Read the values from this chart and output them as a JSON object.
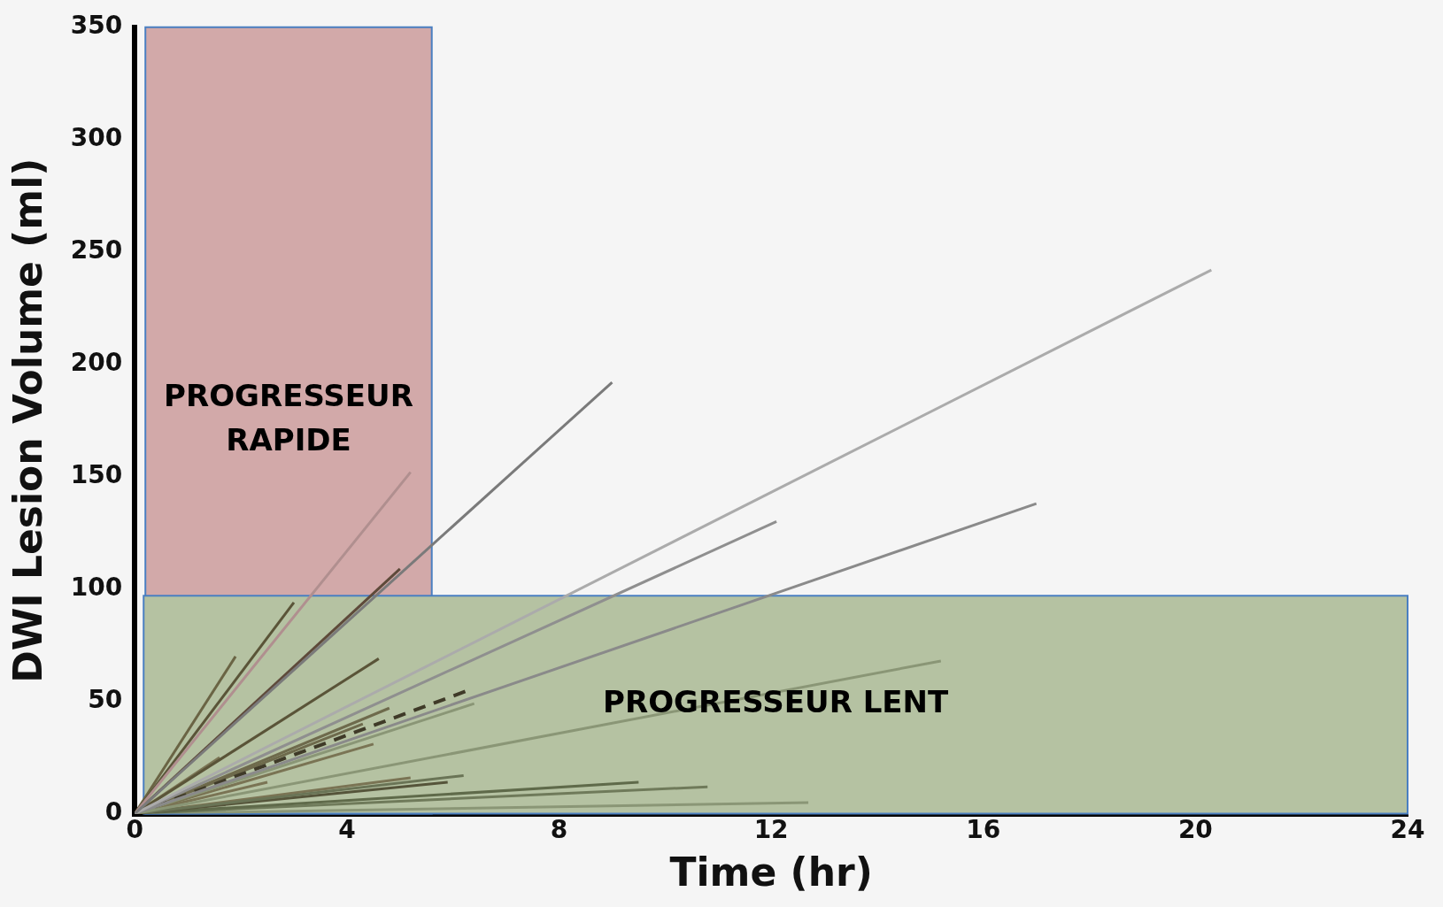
{
  "chart_data": {
    "type": "line",
    "xlabel": "Time (hr)",
    "ylabel": "DWI Lesion Volume (ml)",
    "xlim": [
      0,
      24
    ],
    "xticks": [
      0,
      4,
      8,
      12,
      16,
      20,
      24
    ],
    "ylim": [
      0,
      350
    ],
    "yticks": [
      0,
      50,
      100,
      150,
      200,
      250,
      300,
      350
    ],
    "grid": false,
    "legend": false,
    "marker": "none",
    "line_style": "solid",
    "bands": [
      {
        "axis": "x",
        "from": 0.2,
        "to": 5.6,
        "label": "PROGRESSEUR RAPIDE",
        "color": "#d2a9a9"
      },
      {
        "axis": "y",
        "from": 0,
        "to": 97,
        "label": "PROGRESSEUR LENT",
        "color": "#b5c2a2"
      }
    ],
    "series": [
      {
        "color": "#7a7a7a",
        "x": [
          0,
          9.0
        ],
        "values": [
          0,
          192
        ]
      },
      {
        "color": "#ababab",
        "x": [
          0,
          20.3
        ],
        "values": [
          0,
          242
        ]
      },
      {
        "color": "#8f8f8f",
        "x": [
          0,
          12.1
        ],
        "values": [
          0,
          130
        ]
      },
      {
        "color": "#8a8a8a",
        "x": [
          0,
          17.0
        ],
        "values": [
          0,
          138
        ]
      },
      {
        "color": "#b08f8f",
        "x": [
          0,
          5.2
        ],
        "values": [
          0,
          152
        ]
      },
      {
        "color": "#5e4a3a",
        "x": [
          0,
          5.0
        ],
        "values": [
          0,
          109
        ]
      },
      {
        "color": "#5a5438",
        "x": [
          0,
          3.0
        ],
        "values": [
          0,
          94
        ]
      },
      {
        "color": "#6a6444",
        "x": [
          0,
          1.9
        ],
        "values": [
          0,
          70
        ]
      },
      {
        "color": "#5a5438",
        "x": [
          0,
          4.6
        ],
        "values": [
          0,
          69
        ]
      },
      {
        "color": "#8a9676",
        "x": [
          0,
          15.2
        ],
        "values": [
          0,
          68
        ]
      },
      {
        "color": "#3f3a28",
        "x": [
          0,
          6.3
        ],
        "values": [
          0,
          55
        ],
        "line_style": "dashed"
      },
      {
        "color": "#8a9676",
        "x": [
          0,
          6.4
        ],
        "values": [
          0,
          49
        ]
      },
      {
        "color": "#6e6a4c",
        "x": [
          0,
          4.8
        ],
        "values": [
          0,
          47
        ]
      },
      {
        "color": "#6e6a4c",
        "x": [
          0,
          4.3
        ],
        "values": [
          0,
          40
        ]
      },
      {
        "color": "#7a7454",
        "x": [
          0,
          4.5
        ],
        "values": [
          0,
          31
        ]
      },
      {
        "color": "#7a7454",
        "x": [
          0,
          1.6
        ],
        "values": [
          0,
          25
        ]
      },
      {
        "color": "#6a7456",
        "x": [
          0,
          6.2
        ],
        "values": [
          0,
          17
        ]
      },
      {
        "color": "#7a7454",
        "x": [
          0,
          5.2
        ],
        "values": [
          0,
          16
        ]
      },
      {
        "color": "#55543a",
        "x": [
          0,
          5.9
        ],
        "values": [
          0,
          14
        ]
      },
      {
        "color": "#5f6a4a",
        "x": [
          0,
          9.5
        ],
        "values": [
          0,
          14
        ]
      },
      {
        "color": "#6f7a5a",
        "x": [
          0,
          10.8
        ],
        "values": [
          0,
          12
        ]
      },
      {
        "color": "#7a7454",
        "x": [
          0,
          2.5
        ],
        "values": [
          0,
          14
        ]
      },
      {
        "color": "#8a9676",
        "x": [
          0,
          12.7
        ],
        "values": [
          0,
          5
        ]
      }
    ]
  }
}
